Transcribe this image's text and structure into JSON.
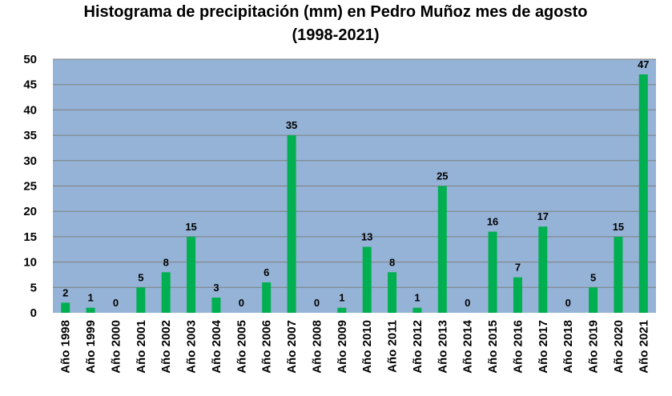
{
  "chart_data": {
    "type": "bar",
    "title": [
      "Histograma de precipitación (mm) en Pedro Muñoz mes de agosto",
      "(1998-2021)"
    ],
    "categories": [
      "Año 1998",
      "Año 1999",
      "Año 2000",
      "Año 2001",
      "Año 2002",
      "Año 2003",
      "Año 2004",
      "Año 2005",
      "Año 2006",
      "Año 2007",
      "Año 2008",
      "Año 2009",
      "Año 2010",
      "Año 2011",
      "Año 2012",
      "Año 2013",
      "Año 2014",
      "Año 2015",
      "Año 2016",
      "Año 2017",
      "Año 2018",
      "Año 2019",
      "Año 2020",
      "Año 2021"
    ],
    "values": [
      2,
      1,
      0,
      5,
      8,
      15,
      3,
      0,
      6,
      35,
      0,
      1,
      13,
      8,
      1,
      25,
      0,
      16,
      7,
      17,
      0,
      5,
      15,
      47
    ],
    "ylim": [
      0,
      50
    ],
    "yticks": [
      0,
      5,
      10,
      15,
      20,
      25,
      30,
      35,
      40,
      45,
      50
    ],
    "grid": true,
    "data_labels": true,
    "colors": {
      "plot_background": "#95b3d7",
      "bar": "#00b050",
      "gridline": "#7f7f7f"
    }
  }
}
